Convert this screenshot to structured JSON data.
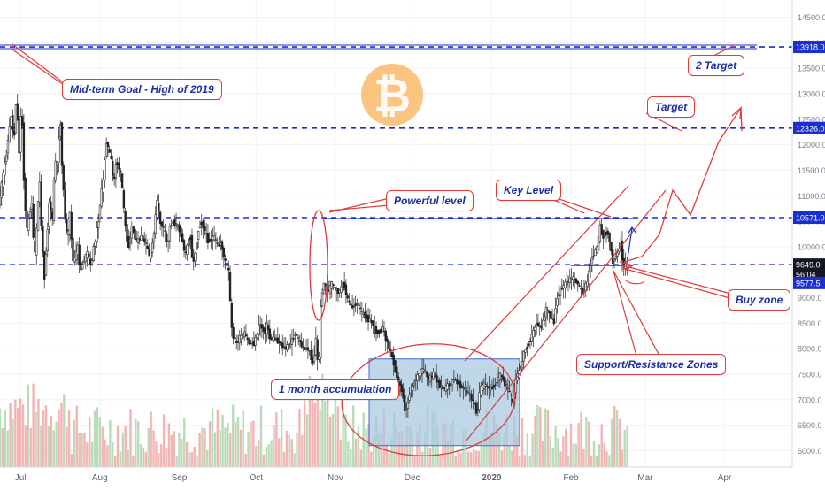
{
  "chart_data": {
    "type": "candlestick",
    "instrument": "BTCUSD",
    "price_axis": {
      "range": [
        5700,
        15000
      ],
      "tick_labels": [
        "14500.0",
        "14000.0",
        "13500.0",
        "13000.0",
        "12500.0",
        "12000.0",
        "11500.0",
        "11000.0",
        "10500.0",
        "10000.0",
        "9500.0",
        "9000.0",
        "8500.0",
        "8000.0",
        "7500.0",
        "7000.0",
        "6500.0",
        "6000.0"
      ],
      "tick_values": [
        14500,
        14000,
        13500,
        13000,
        12500,
        12000,
        11500,
        11000,
        10500,
        10000,
        9500,
        9000,
        8500,
        8000,
        7500,
        7000,
        6500,
        6000
      ]
    },
    "time_axis": {
      "labels": [
        "Jul",
        "Aug",
        "Sep",
        "Oct",
        "Nov",
        "Dec",
        "2020",
        "Feb",
        "Mar",
        "Apr"
      ],
      "label_days": [
        0,
        31,
        62,
        92,
        123,
        153,
        184,
        215,
        244,
        275
      ]
    },
    "current_price_labels": [
      "9649.0",
      "56:04",
      "9577.5"
    ],
    "levels": [
      {
        "value": 13918.0,
        "label": "13918.0"
      },
      {
        "value": 12326.0,
        "label": "12326.0"
      },
      {
        "value": 10571.0,
        "label": "10571.0"
      },
      {
        "value": 9649.0,
        "label": ""
      }
    ],
    "price_path": [
      [
        -8,
        10800
      ],
      [
        -5,
        11800
      ],
      [
        -3,
        12600
      ],
      [
        -2,
        12000
      ],
      [
        -1,
        13000
      ],
      [
        0,
        11800
      ],
      [
        1,
        12900
      ],
      [
        2,
        11200
      ],
      [
        3,
        10300
      ],
      [
        5,
        10900
      ],
      [
        6,
        9700
      ],
      [
        7,
        10400
      ],
      [
        8,
        11400
      ],
      [
        9,
        10100
      ],
      [
        10,
        9400
      ],
      [
        11,
        10200
      ],
      [
        12,
        11000
      ],
      [
        13,
        10400
      ],
      [
        14,
        11700
      ],
      [
        15,
        11600
      ],
      [
        16,
        12600
      ],
      [
        17,
        11400
      ],
      [
        18,
        10600
      ],
      [
        19,
        10100
      ],
      [
        20,
        10700
      ],
      [
        21,
        9700
      ],
      [
        22,
        9800
      ],
      [
        23,
        10000
      ],
      [
        24,
        9500
      ],
      [
        25,
        9700
      ],
      [
        27,
        9900
      ],
      [
        28,
        9600
      ],
      [
        30,
        10200
      ],
      [
        31,
        10500
      ],
      [
        32,
        11000
      ],
      [
        33,
        11300
      ],
      [
        34,
        12100
      ],
      [
        36,
        11700
      ],
      [
        37,
        11200
      ],
      [
        38,
        11700
      ],
      [
        40,
        11400
      ],
      [
        41,
        10700
      ],
      [
        42,
        10200
      ],
      [
        43,
        10000
      ],
      [
        44,
        10400
      ],
      [
        46,
        10100
      ],
      [
        48,
        10200
      ],
      [
        50,
        10000
      ],
      [
        51,
        9800
      ],
      [
        52,
        10000
      ],
      [
        53,
        10400
      ],
      [
        54,
        10900
      ],
      [
        55,
        10500
      ],
      [
        57,
        10300
      ],
      [
        58,
        10000
      ],
      [
        59,
        10400
      ],
      [
        60,
        10500
      ],
      [
        62,
        10400
      ],
      [
        63,
        10300
      ],
      [
        64,
        10100
      ],
      [
        65,
        9800
      ],
      [
        66,
        10100
      ],
      [
        67,
        10200
      ],
      [
        68,
        9600
      ],
      [
        70,
        10300
      ],
      [
        71,
        10500
      ],
      [
        72,
        10400
      ],
      [
        74,
        10100
      ],
      [
        76,
        10200
      ],
      [
        78,
        10000
      ],
      [
        79,
        10100
      ],
      [
        80,
        9800
      ],
      [
        82,
        9500
      ],
      [
        83,
        8400
      ],
      [
        84,
        8200
      ],
      [
        85,
        8100
      ],
      [
        86,
        8200
      ],
      [
        88,
        8300
      ],
      [
        90,
        8100
      ],
      [
        92,
        8100
      ],
      [
        94,
        8500
      ],
      [
        96,
        8300
      ],
      [
        97,
        8500
      ],
      [
        98,
        8200
      ],
      [
        100,
        8200
      ],
      [
        102,
        8100
      ],
      [
        104,
        8000
      ],
      [
        106,
        8100
      ],
      [
        108,
        8300
      ],
      [
        110,
        8100
      ],
      [
        111,
        8000
      ],
      [
        113,
        8000
      ],
      [
        115,
        7700
      ],
      [
        116,
        8200
      ],
      [
        117,
        7500
      ],
      [
        118,
        9000
      ],
      [
        119,
        9300
      ],
      [
        120,
        9200
      ],
      [
        121,
        9100
      ],
      [
        122,
        9300
      ],
      [
        123,
        9200
      ],
      [
        125,
        9100
      ],
      [
        127,
        9300
      ],
      [
        128,
        9000
      ],
      [
        130,
        8800
      ],
      [
        132,
        8900
      ],
      [
        134,
        8700
      ],
      [
        136,
        8600
      ],
      [
        138,
        8500
      ],
      [
        140,
        8300
      ],
      [
        142,
        8400
      ],
      [
        144,
        8100
      ],
      [
        146,
        7800
      ],
      [
        148,
        7400
      ],
      [
        150,
        7100
      ],
      [
        151,
        6700
      ],
      [
        152,
        7000
      ],
      [
        154,
        7300
      ],
      [
        156,
        7500
      ],
      [
        158,
        7600
      ],
      [
        160,
        7400
      ],
      [
        162,
        7500
      ],
      [
        164,
        7300
      ],
      [
        166,
        7200
      ],
      [
        168,
        7300
      ],
      [
        170,
        7400
      ],
      [
        172,
        7300
      ],
      [
        174,
        7200
      ],
      [
        176,
        7100
      ],
      [
        178,
        6900
      ],
      [
        179,
        6700
      ],
      [
        180,
        7200
      ],
      [
        182,
        7300
      ],
      [
        184,
        7200
      ],
      [
        186,
        7300
      ],
      [
        188,
        7500
      ],
      [
        190,
        7300
      ],
      [
        192,
        7100
      ],
      [
        193,
        6900
      ],
      [
        194,
        7400
      ],
      [
        196,
        7600
      ],
      [
        197,
        7900
      ],
      [
        198,
        8000
      ],
      [
        200,
        8200
      ],
      [
        202,
        8500
      ],
      [
        204,
        8400
      ],
      [
        206,
        8800
      ],
      [
        208,
        8600
      ],
      [
        209,
        8500
      ],
      [
        210,
        9000
      ],
      [
        212,
        9200
      ],
      [
        214,
        9300
      ],
      [
        216,
        9400
      ],
      [
        218,
        9300
      ],
      [
        220,
        9100
      ],
      [
        222,
        9300
      ],
      [
        223,
        9600
      ],
      [
        224,
        9800
      ],
      [
        226,
        10000
      ],
      [
        227,
        10400
      ],
      [
        228,
        10200
      ],
      [
        230,
        10300
      ],
      [
        231,
        10000
      ],
      [
        232,
        9700
      ],
      [
        233,
        9800
      ],
      [
        234,
        9900
      ],
      [
        235,
        10100
      ],
      [
        236,
        9600
      ],
      [
        237,
        9650
      ]
    ],
    "volume_note": "volume bars along bottom"
  },
  "annotations": {
    "midterm_goal": "Mid-term Goal - High of 2019",
    "two_target": "2 Target",
    "target": "Target",
    "powerful_level": "Powerful level",
    "key_level": "Key Level",
    "one_month_accumulation": "1 month accumulation",
    "buy_zone": "Buy zone",
    "support_resistance": "Support/Resistance Zones"
  },
  "colors": {
    "level_line": "#1a2fd1",
    "annotation_red": "#e23a3a",
    "price_tag_blue": "#1a2fd1",
    "price_tag_dark": "#131722",
    "accumulation_box": "#a9c9e0",
    "bitcoin_orange": "#f7931a",
    "candle": "#222222",
    "volume_red": "#f3b4b4",
    "volume_green": "#b9dcb8"
  },
  "icons": {
    "bitcoin_logo": "bitcoin-logo"
  }
}
